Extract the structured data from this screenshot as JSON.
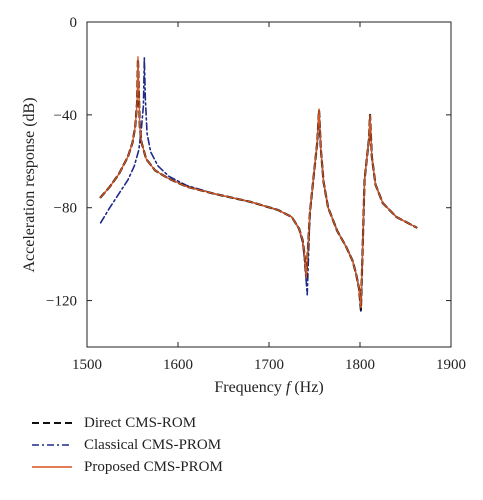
{
  "chart_data": {
    "type": "line",
    "xlabel": "Frequency",
    "xlabel_var": "f",
    "xlabel_unit": "(Hz)",
    "ylabel": "Acceleration response (dB)",
    "xlim": [
      1500,
      1900
    ],
    "ylim": [
      -140,
      0
    ],
    "xticks": [
      1500,
      1600,
      1700,
      1800,
      1900
    ],
    "yticks": [
      0,
      -40,
      -80,
      -120
    ],
    "grid": false,
    "legend_position": "below",
    "series": [
      {
        "name": "Direct CMS-ROM",
        "color": "#111111",
        "style": "dashed",
        "x": [
          1515,
          1525,
          1535,
          1545,
          1550,
          1553,
          1555,
          1556,
          1557,
          1558,
          1560,
          1565,
          1575,
          1590,
          1610,
          1640,
          1680,
          1710,
          1725,
          1733,
          1737,
          1739,
          1741,
          1745,
          1750,
          1753,
          1755,
          1757,
          1760,
          1765,
          1775,
          1785,
          1792,
          1796,
          1799,
          1801,
          1805,
          1808,
          1810,
          1811,
          1813,
          1817,
          1825,
          1840,
          1862
        ],
        "y": [
          -75.5,
          -71,
          -65.5,
          -58,
          -52,
          -45,
          -35,
          -16,
          -30,
          -45,
          -52,
          -59,
          -64,
          -67.5,
          -71,
          -74,
          -77.5,
          -81,
          -84,
          -89,
          -94,
          -100,
          -110,
          -82,
          -63,
          -52,
          -38,
          -55,
          -69,
          -80,
          -90,
          -97,
          -103,
          -109,
          -115,
          -124,
          -68,
          -57,
          -50,
          -40,
          -58,
          -70,
          -78,
          -84,
          -88.5
        ]
      },
      {
        "name": "Classical CMS-PROM",
        "color": "#1f2a8a",
        "style": "dashdot",
        "x": [
          1515,
          1525,
          1535,
          1545,
          1552,
          1557,
          1560,
          1562,
          1563,
          1564,
          1566,
          1570,
          1578,
          1590,
          1610,
          1640,
          1680,
          1710,
          1725,
          1733,
          1737,
          1739,
          1742,
          1745,
          1750,
          1753,
          1755,
          1757,
          1760,
          1765,
          1775,
          1785,
          1792,
          1796,
          1799,
          1801,
          1805,
          1808,
          1810,
          1811,
          1813,
          1817,
          1825,
          1840,
          1862
        ],
        "y": [
          -86.5,
          -80,
          -74,
          -68,
          -62,
          -55,
          -45,
          -36,
          -15.5,
          -32,
          -48,
          -56,
          -62,
          -66.5,
          -70.5,
          -74,
          -77.5,
          -81,
          -84,
          -89,
          -95,
          -102,
          -117.5,
          -82,
          -63,
          -52,
          -38,
          -55,
          -69,
          -80,
          -90,
          -97,
          -103,
          -109,
          -115,
          -124.5,
          -68,
          -57,
          -50,
          -41,
          -58,
          -70,
          -78,
          -84,
          -88.5
        ]
      },
      {
        "name": "Proposed CMS-PROM",
        "color": "#d9541e",
        "style": "solid",
        "x": [
          1515,
          1525,
          1535,
          1545,
          1550,
          1553,
          1555,
          1556,
          1557,
          1558,
          1560,
          1565,
          1575,
          1590,
          1610,
          1640,
          1680,
          1710,
          1725,
          1733,
          1737,
          1739,
          1741,
          1745,
          1750,
          1753,
          1755,
          1757,
          1760,
          1765,
          1775,
          1785,
          1792,
          1796,
          1799,
          1801,
          1805,
          1808,
          1810,
          1811,
          1813,
          1817,
          1825,
          1840,
          1862
        ],
        "y": [
          -75.5,
          -71,
          -65.5,
          -58,
          -52,
          -45,
          -35,
          -15,
          -30,
          -45,
          -52,
          -59,
          -64,
          -67.5,
          -71,
          -74,
          -77.5,
          -81,
          -84,
          -89,
          -94,
          -100,
          -110,
          -82,
          -63,
          -52,
          -37.5,
          -55,
          -69,
          -80,
          -90,
          -97,
          -103,
          -109,
          -115,
          -123,
          -68,
          -57,
          -50,
          -40,
          -58,
          -70,
          -78,
          -84,
          -88.5
        ]
      }
    ]
  }
}
